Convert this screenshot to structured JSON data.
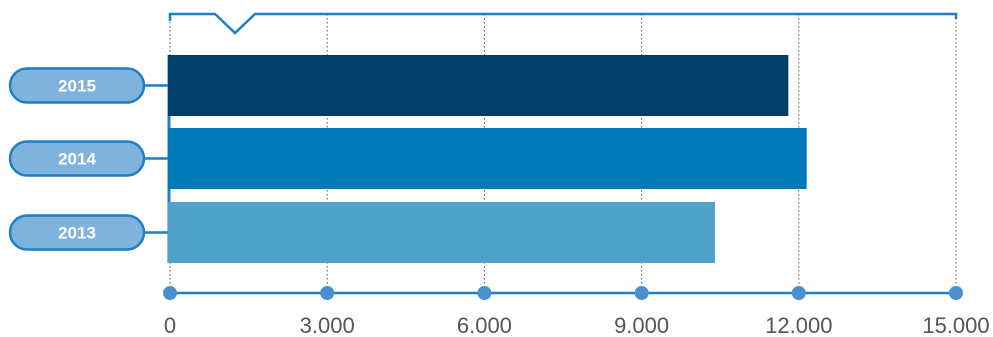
{
  "chart_data": {
    "type": "bar",
    "orientation": "horizontal",
    "categories": [
      "2015",
      "2014",
      "2013"
    ],
    "values": [
      11800,
      12150,
      10400
    ],
    "colors": [
      "#003f6a",
      "#0079b8",
      "#4fa3ca"
    ],
    "xlim": [
      0,
      15000
    ],
    "xticks": [
      0,
      3000,
      6000,
      9000,
      12000,
      15000
    ],
    "xtick_labels": [
      "0",
      "3.000",
      "6.000",
      "9.000",
      "12.000",
      "15.000"
    ],
    "title": "",
    "xlabel": "",
    "ylabel": "",
    "grid": "vertical dotted lines",
    "axis_color": "#1e7fc4",
    "label_pill_color": "#7fb2dd",
    "label_pill_border": "#1e7fc4"
  }
}
